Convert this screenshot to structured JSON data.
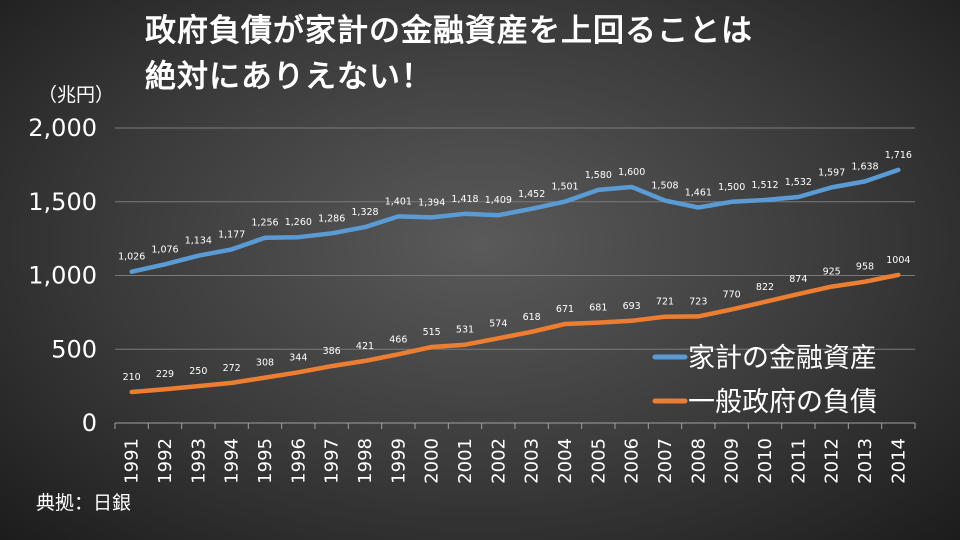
{
  "chart_data": {
    "type": "line",
    "title_lines": [
      "政府負債が家計の金融資産を上回ることは",
      "絶対にありえない！"
    ],
    "unit_label": "（兆円）",
    "source_label": "典拠：日銀",
    "categories": [
      "1991",
      "1992",
      "1993",
      "1994",
      "1995",
      "1996",
      "1997",
      "1998",
      "1999",
      "2000",
      "2001",
      "2002",
      "2003",
      "2004",
      "2005",
      "2006",
      "2007",
      "2008",
      "2009",
      "2010",
      "2011",
      "2012",
      "2013",
      "2014"
    ],
    "y_ticks": [
      {
        "value": 0,
        "label": "0"
      },
      {
        "value": 500,
        "label": "500"
      },
      {
        "value": 1000,
        "label": "1,000"
      },
      {
        "value": 1500,
        "label": "1,500"
      },
      {
        "value": 2000,
        "label": "2,000"
      }
    ],
    "ylim": [
      0,
      2000
    ],
    "legend_position": "right",
    "series": [
      {
        "name": "家計の金融資産",
        "color": "#5b9bd5",
        "values": [
          1026,
          1076,
          1134,
          1177,
          1256,
          1260,
          1286,
          1328,
          1401,
          1394,
          1418,
          1409,
          1452,
          1501,
          1580,
          1600,
          1508,
          1461,
          1500,
          1512,
          1532,
          1597,
          1638,
          1716
        ],
        "labels": [
          "1,026",
          "1,076",
          "1,134",
          "1,177",
          "1,256",
          "1,260",
          "1,286",
          "1,328",
          "1,401",
          "1,394",
          "1,418",
          "1,409",
          "1,452",
          "1,501",
          "1,580",
          "1,600",
          "1,508",
          "1,461",
          "1,500",
          "1,512",
          "1,532",
          "1,597",
          "1,638",
          "1,716"
        ]
      },
      {
        "name": "一般政府の負債",
        "color": "#ed7d31",
        "values": [
          210,
          229,
          250,
          272,
          308,
          344,
          386,
          421,
          466,
          515,
          531,
          574,
          618,
          671,
          681,
          693,
          721,
          723,
          770,
          822,
          874,
          925,
          958,
          1004
        ],
        "labels": [
          "210",
          "229",
          "250",
          "272",
          "308",
          "344",
          "386",
          "421",
          "466",
          "515",
          "531",
          "574",
          "618",
          "671",
          "681",
          "693",
          "721",
          "723",
          "770",
          "822",
          "874",
          "925",
          "958",
          "1004"
        ]
      }
    ]
  }
}
